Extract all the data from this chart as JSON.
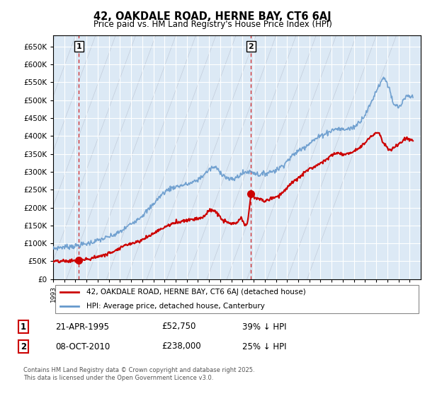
{
  "title_line1": "42, OAKDALE ROAD, HERNE BAY, CT6 6AJ",
  "title_line2": "Price paid vs. HM Land Registry's House Price Index (HPI)",
  "ylim": [
    0,
    680000
  ],
  "yticks": [
    0,
    50000,
    100000,
    150000,
    200000,
    250000,
    300000,
    350000,
    400000,
    450000,
    500000,
    550000,
    600000,
    650000
  ],
  "legend_line1": "42, OAKDALE ROAD, HERNE BAY, CT6 6AJ (detached house)",
  "legend_line2": "HPI: Average price, detached house, Canterbury",
  "annotation1_date": "21-APR-1995",
  "annotation1_price": "£52,750",
  "annotation1_hpi": "39% ↓ HPI",
  "annotation2_date": "08-OCT-2010",
  "annotation2_price": "£238,000",
  "annotation2_hpi": "25% ↓ HPI",
  "footer": "Contains HM Land Registry data © Crown copyright and database right 2025.\nThis data is licensed under the Open Government Licence v3.0.",
  "red_color": "#cc0000",
  "blue_color": "#6699cc",
  "bg_color": "#dce9f5",
  "purchase1_year": 1995.31,
  "purchase1_price": 52750,
  "purchase2_year": 2010.77,
  "purchase2_price": 238000,
  "xmin": 1993,
  "xmax": 2026
}
